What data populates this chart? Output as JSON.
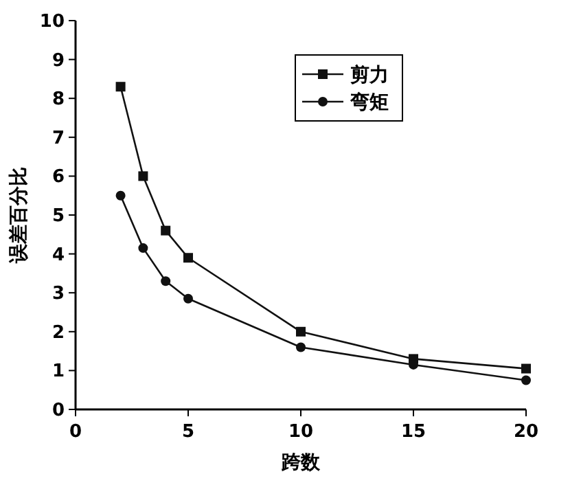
{
  "chart_data": {
    "type": "line",
    "xlabel": "跨数",
    "ylabel": "误差百分比",
    "x": [
      2,
      3,
      4,
      5,
      10,
      15,
      20
    ],
    "series": [
      {
        "name": "剪力",
        "color": "#111111",
        "marker": "square",
        "values": [
          8.3,
          6.0,
          4.6,
          3.9,
          2.0,
          1.3,
          1.05
        ]
      },
      {
        "name": "弯矩",
        "color": "#111111",
        "marker": "circle",
        "values": [
          5.5,
          4.15,
          3.3,
          2.85,
          1.6,
          1.15,
          0.75
        ]
      }
    ],
    "xlim": [
      0,
      20
    ],
    "xticks": [
      0,
      5,
      10,
      15,
      20
    ],
    "ylim": [
      0,
      10
    ],
    "yticks": [
      0,
      1,
      2,
      3,
      4,
      5,
      6,
      7,
      8,
      9,
      10
    ],
    "grid": false,
    "legend": "top right",
    "line_style": "solid"
  }
}
